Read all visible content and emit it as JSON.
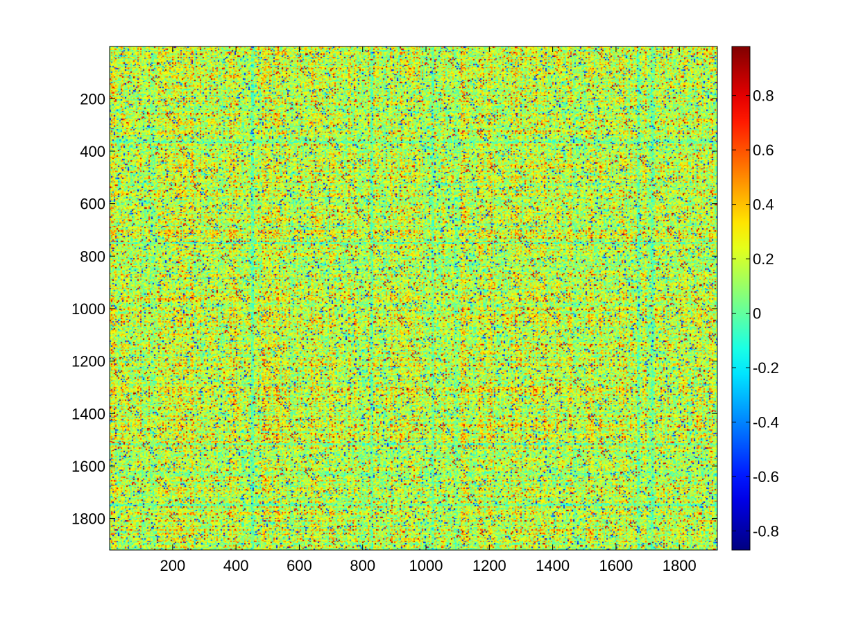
{
  "chart_data": {
    "type": "heatmap",
    "title": "",
    "xlabel": "",
    "ylabel": "",
    "x_range": [
      1,
      1920
    ],
    "y_range": [
      1,
      1920
    ],
    "y_reversed": true,
    "x_tick_labels": [
      "200",
      "400",
      "600",
      "800",
      "1000",
      "1200",
      "1400",
      "1600",
      "1800"
    ],
    "x_ticks": [
      200,
      400,
      600,
      800,
      1000,
      1200,
      1400,
      1600,
      1800
    ],
    "y_tick_labels": [
      "200",
      "400",
      "600",
      "800",
      "1000",
      "1200",
      "1400",
      "1600",
      "1800"
    ],
    "y_ticks": [
      200,
      400,
      600,
      800,
      1000,
      1200,
      1400,
      1600,
      1800
    ],
    "colorbar": {
      "colormap": "jet",
      "range": [
        -0.87,
        0.98
      ],
      "tick_labels": [
        "-0.8",
        "-0.6",
        "-0.4",
        "-0.2",
        "0",
        "0.2",
        "0.4",
        "0.6",
        "0.8"
      ],
      "ticks": [
        -0.8,
        -0.6,
        -0.4,
        -0.2,
        0,
        0.2,
        0.4,
        0.6,
        0.8
      ],
      "position": "right"
    },
    "grid": false,
    "description_of_values": "dense correlation-like matrix; predominantly values 0 to 0.5 with speckled noise across full range"
  }
}
